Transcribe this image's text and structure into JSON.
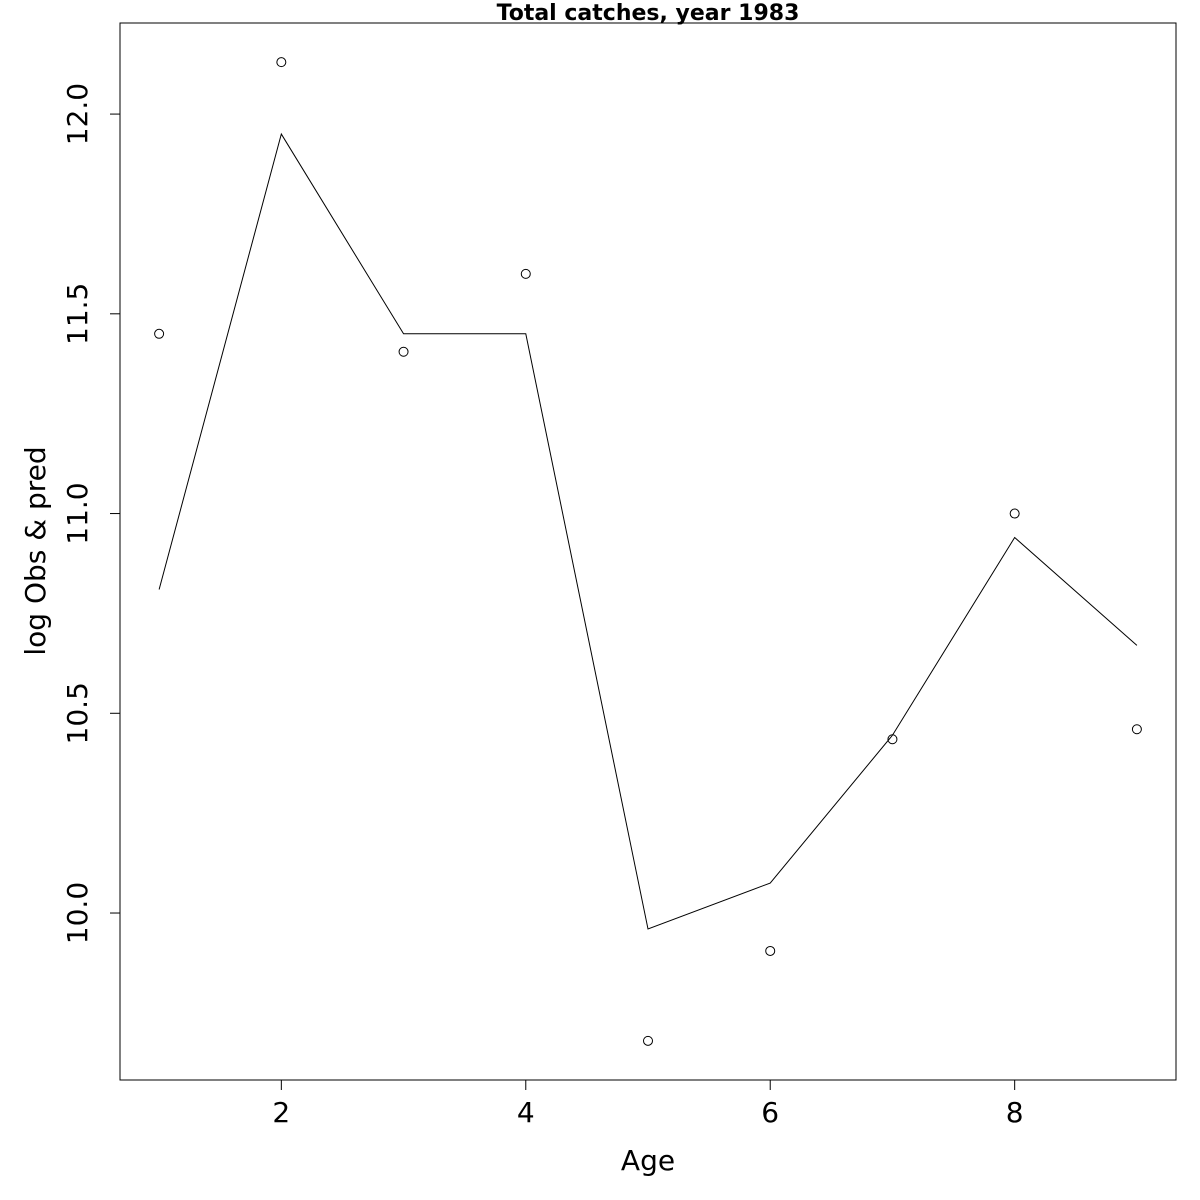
{
  "chart_data": {
    "type": "line",
    "title": "Total catches, year 1983",
    "xlabel": "Age",
    "ylabel": "log Obs & pred",
    "xlim": [
      0.68,
      9.32
    ],
    "ylim": [
      9.582,
      12.228
    ],
    "xticks": [
      2,
      4,
      6,
      8
    ],
    "xtick_labels": [
      "2",
      "4",
      "6",
      "8"
    ],
    "yticks": [
      10.0,
      10.5,
      11.0,
      11.5,
      12.0
    ],
    "ytick_labels": [
      "10.0",
      "10.5",
      "11.0",
      "11.5",
      "12.0"
    ],
    "grid": false,
    "series": [
      {
        "style": "points",
        "x": [
          1,
          2,
          3,
          4,
          5,
          6,
          7,
          8,
          9
        ],
        "y": [
          11.45,
          12.13,
          11.405,
          11.6,
          9.68,
          9.905,
          10.435,
          11.0,
          10.46
        ]
      },
      {
        "style": "line",
        "x": [
          1,
          2,
          3,
          4,
          5,
          6,
          7,
          8,
          9
        ],
        "y": [
          10.81,
          11.95,
          11.45,
          11.45,
          9.96,
          10.075,
          10.445,
          10.94,
          10.67
        ]
      }
    ],
    "colors": {
      "ink": "#000000",
      "background": "#ffffff"
    }
  }
}
